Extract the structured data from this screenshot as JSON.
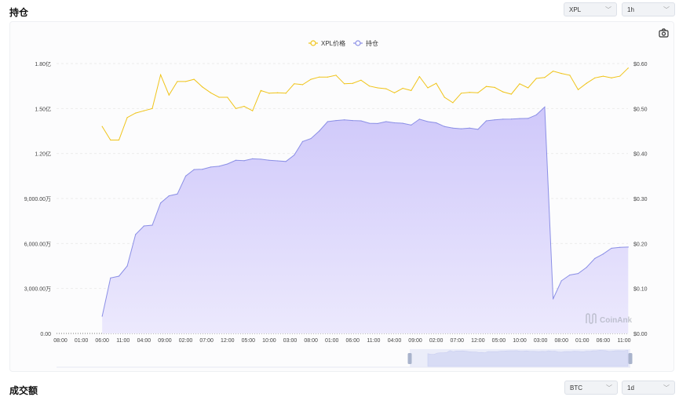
{
  "section1": {
    "title": "持仓",
    "symbol_select": "XPL",
    "interval_select": "1h"
  },
  "section2": {
    "title": "成交额",
    "symbol_select": "BTC",
    "interval_select": "1d"
  },
  "watermark": "CoinAnk",
  "icons": {
    "screenshot": "camera-icon"
  },
  "chart_data": {
    "type": "line",
    "legend_position": "top-center",
    "grid": true,
    "x_ticks": [
      "08:00",
      "01:00",
      "06:00",
      "11:00",
      "04:00",
      "09:00",
      "02:00",
      "07:00",
      "12:00",
      "05:00",
      "10:00",
      "03:00",
      "08:00",
      "01:00",
      "06:00",
      "11:00",
      "04:00",
      "09:00",
      "02:00",
      "07:00",
      "12:00",
      "05:00",
      "10:00",
      "03:00",
      "08:00",
      "01:00",
      "06:00",
      "11:00"
    ],
    "y_left_ticks": [
      "0.00",
      "3,000.00万",
      "6,000.00万",
      "9,000.00万",
      "1.20亿",
      "1.50亿",
      "1.80亿"
    ],
    "y_left_range_wan": [
      0,
      18000
    ],
    "y_right_ticks": [
      "$0.00",
      "$0.10",
      "$0.20",
      "$0.30",
      "$0.40",
      "$0.50",
      "$0.60"
    ],
    "y_right_range": [
      0,
      0.6
    ],
    "x": [
      "06:00",
      "08:00",
      "10:00",
      "12:00",
      "02:00",
      "04:00",
      "06:00",
      "08:00",
      "10:00",
      "12:00",
      "02:00",
      "04:00",
      "06:00",
      "08:00",
      "10:00",
      "12:00",
      "02:00",
      "04:00",
      "06:00",
      "08:00",
      "10:00",
      "12:00",
      "02:00",
      "04:00",
      "06:00",
      "08:00",
      "10:00",
      "12:00",
      "02:00",
      "04:00",
      "06:00",
      "08:00",
      "10:00",
      "12:00",
      "02:00",
      "04:00",
      "06:00",
      "08:00",
      "10:00",
      "12:00",
      "02:00",
      "04:00",
      "06:00",
      "08:00",
      "10:00",
      "12:00",
      "02:00",
      "04:00",
      "06:00",
      "08:00",
      "10:00",
      "12:00",
      "02:00",
      "04:00",
      "06:00",
      "08:00",
      "10:00",
      "12:00",
      "02:00",
      "04:00",
      "06:00",
      "08:00",
      "10:00",
      "12:00"
    ],
    "series": [
      {
        "name": "XPL价格",
        "color": "#f0c419",
        "axis": "right",
        "values": [
          0.46,
          0.43,
          0.43,
          0.48,
          0.49,
          0.495,
          0.5,
          0.575,
          0.53,
          0.56,
          0.56,
          0.565,
          0.548,
          0.535,
          0.525,
          0.525,
          0.5,
          0.505,
          0.495,
          0.54,
          0.534,
          0.535,
          0.534,
          0.555,
          0.553,
          0.565,
          0.57,
          0.57,
          0.574,
          0.555,
          0.556,
          0.563,
          0.55,
          0.546,
          0.544,
          0.535,
          0.545,
          0.54,
          0.571,
          0.546,
          0.556,
          0.525,
          0.513,
          0.534,
          0.536,
          0.535,
          0.549,
          0.547,
          0.537,
          0.532,
          0.555,
          0.546,
          0.567,
          0.569,
          0.583,
          0.578,
          0.574,
          0.542,
          0.556,
          0.568,
          0.572,
          0.568,
          0.572,
          0.59
        ]
      },
      {
        "name": "持仓",
        "color": "#8b8fe6",
        "axis": "left",
        "unit": "万",
        "values": [
          1150,
          3700,
          3820,
          4500,
          6600,
          7170,
          7220,
          8700,
          9180,
          9300,
          10500,
          10930,
          10950,
          11100,
          11150,
          11300,
          11550,
          11520,
          11650,
          11620,
          11550,
          11510,
          11470,
          11900,
          12800,
          13000,
          13500,
          14130,
          14200,
          14250,
          14200,
          14180,
          14020,
          14000,
          14130,
          14050,
          14020,
          13900,
          14290,
          14130,
          14050,
          13800,
          13700,
          13650,
          13700,
          13610,
          14180,
          14250,
          14290,
          14300,
          14330,
          14340,
          14580,
          15100,
          2300,
          3510,
          3900,
          4000,
          4400,
          5000,
          5300,
          5680,
          5740,
          5760
        ]
      }
    ]
  }
}
